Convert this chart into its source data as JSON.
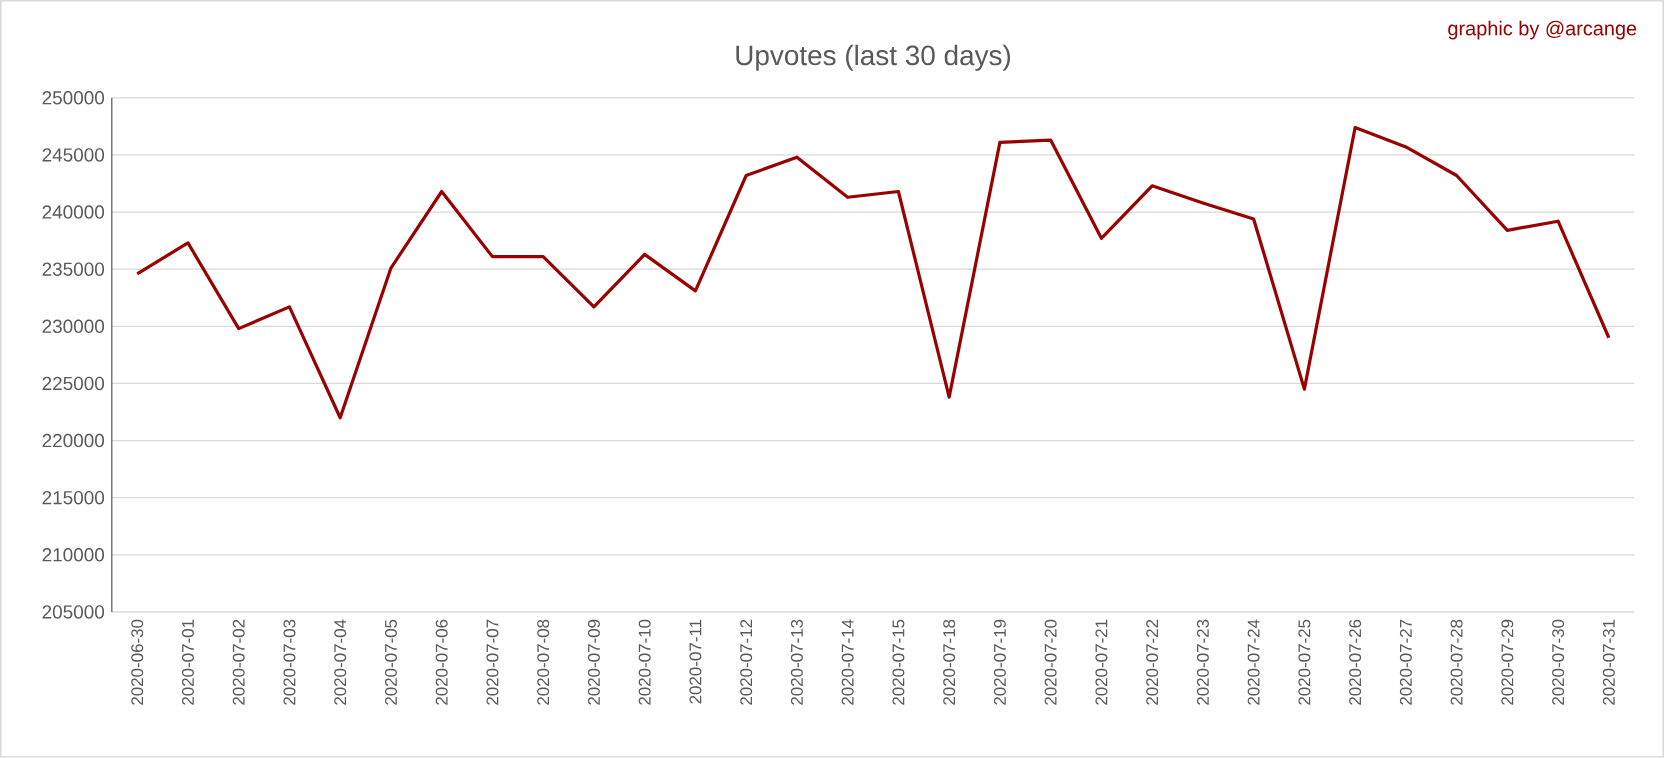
{
  "chart_data": {
    "type": "line",
    "title": "Upvotes (last 30 days)",
    "annotations": [
      "graphic by @arcange"
    ],
    "categories": [
      "2020-06-30",
      "2020-07-01",
      "2020-07-02",
      "2020-07-03",
      "2020-07-04",
      "2020-07-05",
      "2020-07-06",
      "2020-07-07",
      "2020-07-08",
      "2020-07-09",
      "2020-07-10",
      "2020-07-11",
      "2020-07-12",
      "2020-07-13",
      "2020-07-14",
      "2020-07-15",
      "2020-07-18",
      "2020-07-19",
      "2020-07-20",
      "2020-07-21",
      "2020-07-22",
      "2020-07-23",
      "2020-07-24",
      "2020-07-25",
      "2020-07-26",
      "2020-07-27",
      "2020-07-28",
      "2020-07-29",
      "2020-07-30",
      "2020-07-31"
    ],
    "values": [
      234600,
      237300,
      229800,
      231700,
      222000,
      235100,
      241800,
      236100,
      236100,
      231700,
      236300,
      233100,
      243200,
      244800,
      241300,
      241800,
      223800,
      246100,
      246300,
      237700,
      242300,
      240800,
      239400,
      224500,
      247400,
      245700,
      243200,
      238400,
      239200,
      229000
    ],
    "color": "#990000",
    "ylim": [
      205000,
      250000
    ],
    "yticks": [
      205000,
      210000,
      215000,
      220000,
      225000,
      230000,
      235000,
      240000,
      245000,
      250000
    ],
    "grid": "y",
    "marker": "none"
  }
}
